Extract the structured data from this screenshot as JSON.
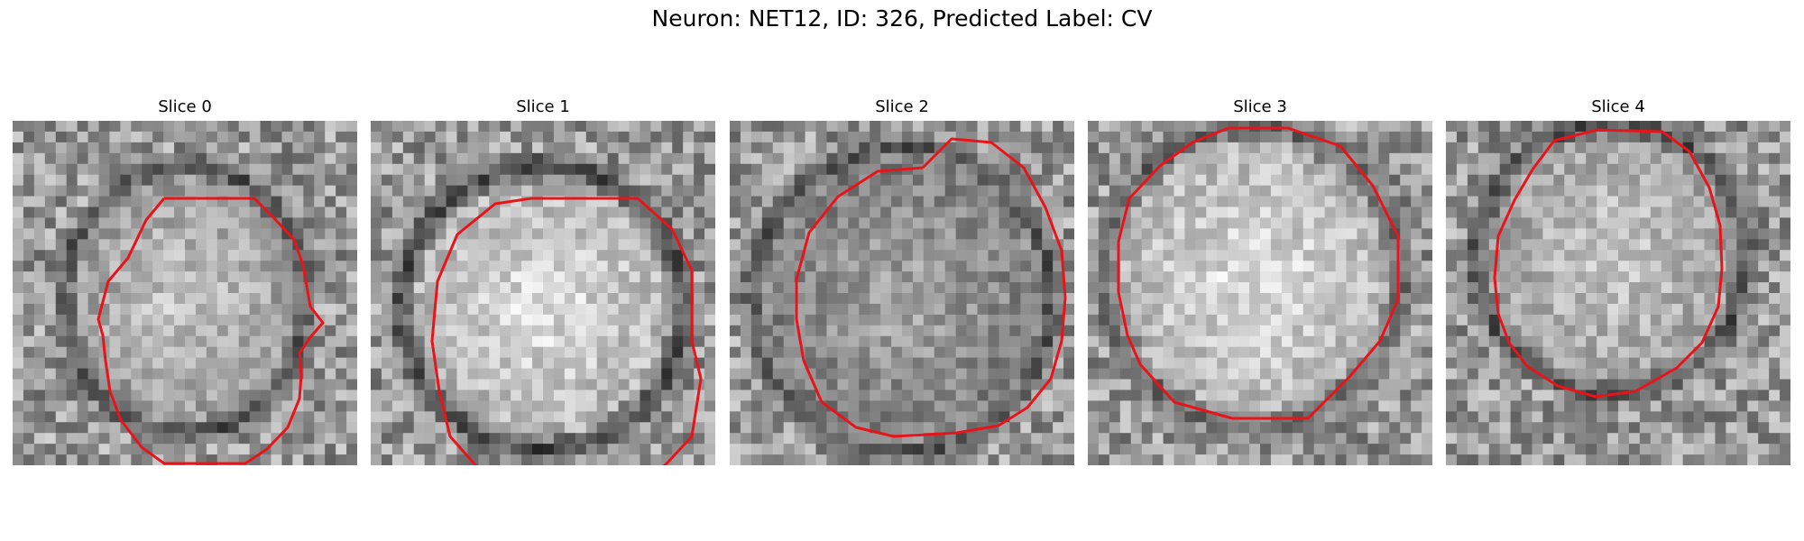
{
  "figure": {
    "title": "Neuron: NET12, ID: 326, Predicted Label: CV"
  },
  "colors": {
    "contour": "#e8141a",
    "background": "#ffffff"
  },
  "panels": [
    {
      "title": "Slice 0"
    },
    {
      "title": "Slice 1"
    },
    {
      "title": "Slice 2"
    },
    {
      "title": "Slice 3"
    },
    {
      "title": "Slice 4"
    }
  ]
}
